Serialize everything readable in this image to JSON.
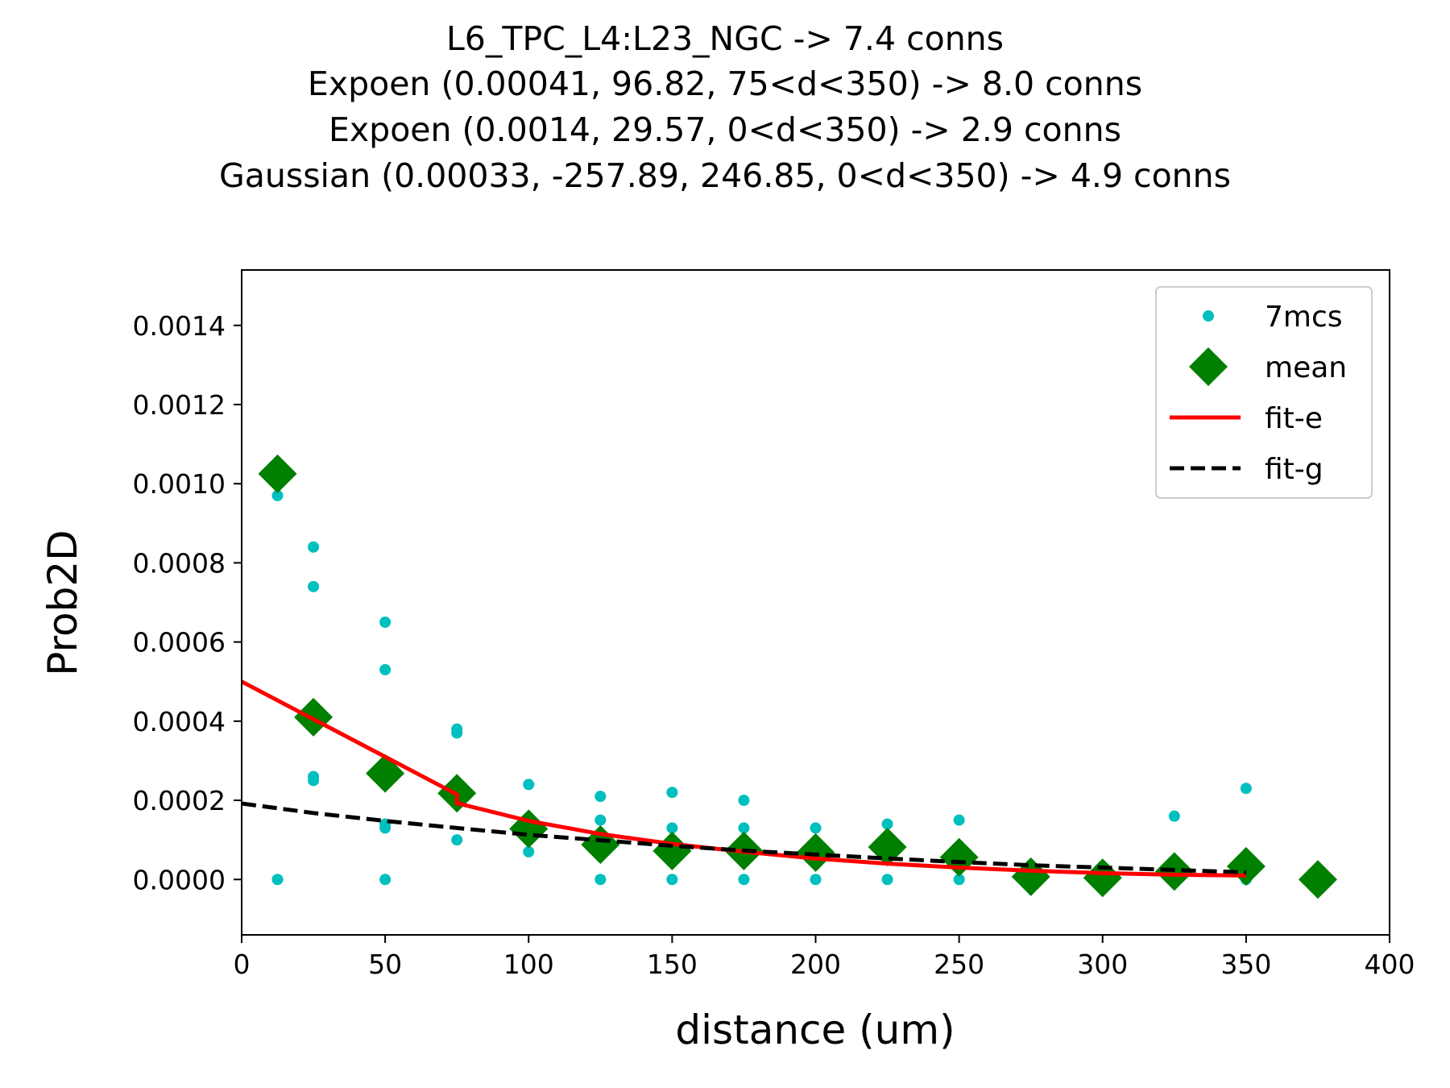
{
  "chart_data": {
    "type": "scatter",
    "title_lines": [
      "L6_TPC_L4:L23_NGC -> 7.4 conns",
      "Expoen (0.00041, 96.82, 75<d<350) -> 8.0 conns",
      "Expoen (0.0014, 29.57, 0<d<350) -> 2.9 conns",
      "Gaussian (0.00033, -257.89, 246.85, 0<d<350) -> 4.9 conns"
    ],
    "xlabel": "distance (um)",
    "ylabel": "Prob2D",
    "xlim": [
      0,
      400
    ],
    "ylim": [
      -0.00014,
      0.00154
    ],
    "xticks": [
      0,
      50,
      100,
      150,
      200,
      250,
      300,
      350,
      400
    ],
    "yticks": [
      0.0,
      0.0002,
      0.0004,
      0.0006,
      0.0008,
      0.001,
      0.0012,
      0.0014
    ],
    "ytick_labels": [
      "0.0000",
      "0.0002",
      "0.0004",
      "0.0006",
      "0.0008",
      "0.0010",
      "0.0012",
      "0.0014"
    ],
    "grid": false,
    "legend_position": "top-right",
    "series": [
      {
        "name": "7mcs",
        "kind": "points",
        "color": "#00bfbf",
        "points": [
          [
            12.5,
            0.00097
          ],
          [
            12.5,
            0.0
          ],
          [
            25,
            0.00084
          ],
          [
            25,
            0.00074
          ],
          [
            25,
            0.00026
          ],
          [
            25,
            0.00025
          ],
          [
            50,
            0.00065
          ],
          [
            50,
            0.00053
          ],
          [
            50,
            0.00014
          ],
          [
            50,
            0.00013
          ],
          [
            50,
            0.0
          ],
          [
            75,
            0.00038
          ],
          [
            75,
            0.00037
          ],
          [
            75,
            0.0001
          ],
          [
            100,
            0.00024
          ],
          [
            100,
            0.0001
          ],
          [
            100,
            7e-05
          ],
          [
            125,
            0.00021
          ],
          [
            125,
            0.00015
          ],
          [
            125,
            0.0
          ],
          [
            150,
            0.00022
          ],
          [
            150,
            0.00013
          ],
          [
            150,
            0.0
          ],
          [
            175,
            0.0002
          ],
          [
            175,
            0.00013
          ],
          [
            175,
            0.0
          ],
          [
            200,
            0.00013
          ],
          [
            200,
            0.0
          ],
          [
            225,
            0.00014
          ],
          [
            225,
            0.0
          ],
          [
            250,
            0.00015
          ],
          [
            250,
            0.0
          ],
          [
            275,
            0.0
          ],
          [
            300,
            0.0
          ],
          [
            325,
            0.00016
          ],
          [
            350,
            0.00023
          ],
          [
            350,
            0.0
          ]
        ]
      },
      {
        "name": "mean",
        "kind": "diamonds",
        "color": "#008000",
        "points": [
          [
            12.5,
            0.001025
          ],
          [
            25,
            0.00041
          ],
          [
            50,
            0.000268
          ],
          [
            75,
            0.000218
          ],
          [
            100,
            0.000128
          ],
          [
            125,
            8.8e-05
          ],
          [
            150,
            7.2e-05
          ],
          [
            175,
            7.2e-05
          ],
          [
            200,
            6.8e-05
          ],
          [
            225,
            8.2e-05
          ],
          [
            250,
            5.6e-05
          ],
          [
            275,
            7e-06
          ],
          [
            300,
            4e-06
          ],
          [
            325,
            2e-05
          ],
          [
            350,
            3.3e-05
          ],
          [
            375,
            0.0
          ]
        ]
      },
      {
        "name": "fit-e",
        "kind": "line",
        "color": "#ff0000",
        "points": [
          [
            0,
            0.0005
          ],
          [
            25,
            0.000405
          ],
          [
            50,
            0.00031
          ],
          [
            75,
            0.000215
          ],
          [
            75,
            0.000193
          ],
          [
            100,
            0.000148
          ],
          [
            125,
            0.000115
          ],
          [
            150,
            9e-05
          ],
          [
            175,
            7e-05
          ],
          [
            200,
            5.3e-05
          ],
          [
            225,
            4e-05
          ],
          [
            250,
            3e-05
          ],
          [
            275,
            2.2e-05
          ],
          [
            300,
            1.6e-05
          ],
          [
            325,
            1.2e-05
          ],
          [
            350,
            1e-05
          ]
        ]
      },
      {
        "name": "fit-g",
        "kind": "dashed",
        "color": "#000000",
        "points": [
          [
            0,
            0.000192
          ],
          [
            25,
            0.000168
          ],
          [
            50,
            0.000148
          ],
          [
            75,
            0.00013
          ],
          [
            100,
            0.000113
          ],
          [
            125,
            9.9e-05
          ],
          [
            150,
            8.5e-05
          ],
          [
            175,
            7.3e-05
          ],
          [
            200,
            6.3e-05
          ],
          [
            225,
            5.3e-05
          ],
          [
            250,
            4.4e-05
          ],
          [
            275,
            3.6e-05
          ],
          [
            300,
            3e-05
          ],
          [
            325,
            2.4e-05
          ],
          [
            350,
            1.8e-05
          ]
        ]
      }
    ]
  }
}
